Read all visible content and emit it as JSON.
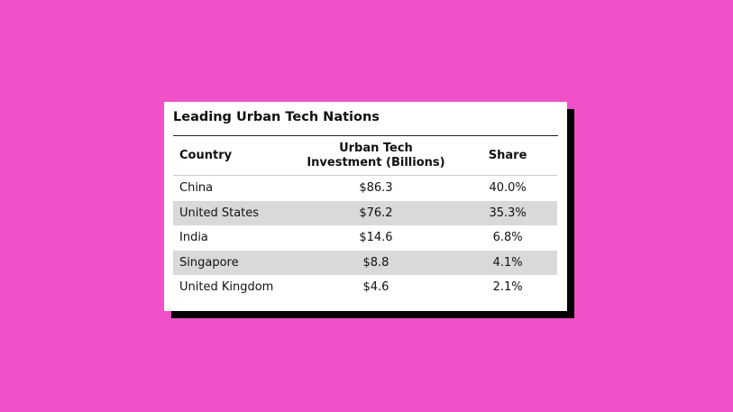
{
  "title": "Leading Urban Tech Nations",
  "table": {
    "headers": [
      "Country",
      "Urban Tech Investment (Billions)",
      "Share"
    ],
    "rows": [
      [
        "China",
        "$86.3",
        "40.0%"
      ],
      [
        "United States",
        "$76.2",
        "35.3%"
      ],
      [
        "India",
        "$14.6",
        "6.8%"
      ],
      [
        "Singapore",
        "$8.8",
        "4.1%"
      ],
      [
        "United Kingdom",
        "$4.6",
        "2.1%"
      ]
    ]
  }
}
